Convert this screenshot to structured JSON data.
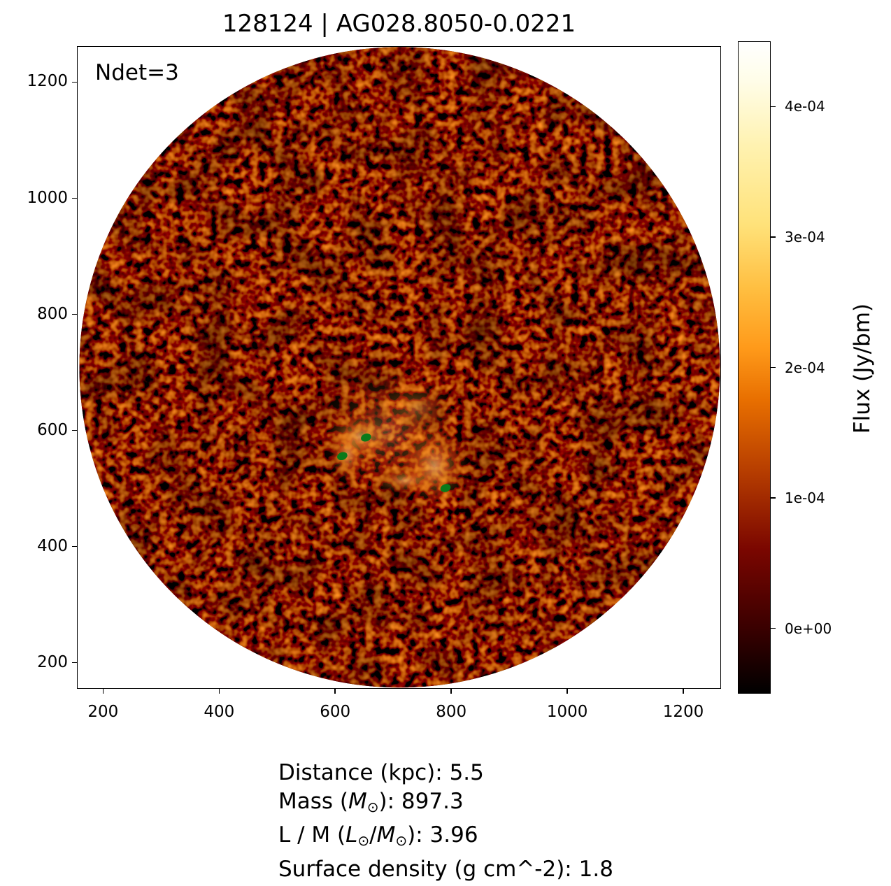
{
  "chart_data": {
    "type": "heatmap",
    "title": "128124 | AG028.8050-0.0221",
    "annotation": "Ndet=3",
    "xlim": [
      155,
      1265
    ],
    "ylim": [
      155,
      1262
    ],
    "xticks": [
      200,
      400,
      600,
      800,
      1000,
      1200
    ],
    "yticks": [
      200,
      400,
      600,
      800,
      1000,
      1200
    ],
    "xtick_labels": [
      "200",
      "400",
      "600",
      "800",
      "1000",
      "1200"
    ],
    "ytick_labels": [
      "200",
      "400",
      "600",
      "800",
      "1000",
      "1200"
    ],
    "image_field": {
      "shape": "circle",
      "center": [
        710,
        710
      ],
      "radius": 552
    },
    "colormap": "afmhot",
    "colorbar": {
      "label": "Flux (Jy/bm)",
      "range": [
        -5e-05,
        0.00045
      ],
      "ticks": [
        0,
        0.0001,
        0.0002,
        0.0003,
        0.0004
      ],
      "tick_labels": [
        "0e+00",
        "1e-04",
        "2e-04",
        "3e-04",
        "4e-04"
      ]
    },
    "detections": {
      "count": 3,
      "color": "#0a7a1a",
      "points": [
        {
          "x": 611,
          "y": 557
        },
        {
          "x": 652,
          "y": 589
        },
        {
          "x": 789,
          "y": 502
        }
      ]
    },
    "stats": {
      "distance_label": "Distance (kpc): ",
      "distance_value": "5.5",
      "mass_label_pre": "Mass (",
      "mass_symbol": "M",
      "mass_label_post": "): ",
      "mass_value": "897.3",
      "lm_label_pre": "L / M (",
      "lm_symbol_l": "L",
      "lm_symbol_m": "M",
      "lm_label_post": "): ",
      "lm_value": "3.96",
      "sd_label": "Surface density (g cm^-2): ",
      "sd_value": "1.8",
      "sun_symbol": "⊙"
    }
  }
}
